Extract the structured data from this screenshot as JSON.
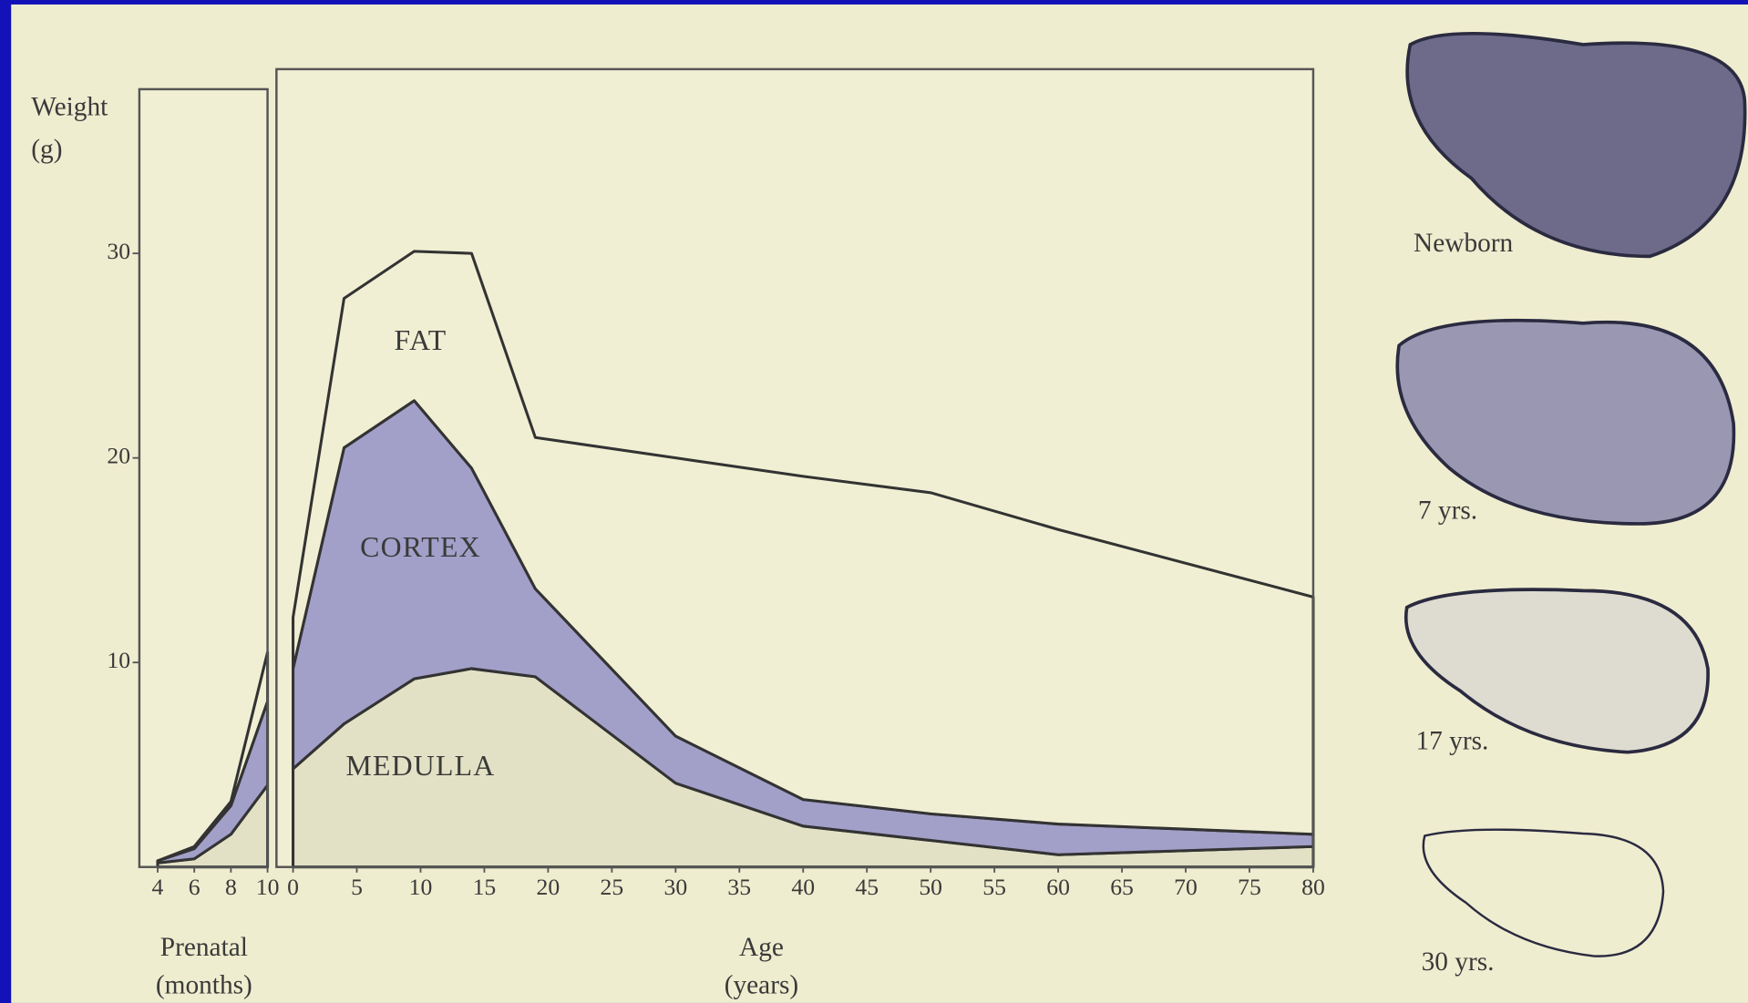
{
  "chart_data": [
    {
      "type": "area",
      "stacked": true,
      "y_label": [
        "Weight",
        "(g)"
      ],
      "x_label": [
        "Prenatal",
        "(months)"
      ],
      "x": [
        4,
        6,
        8,
        10
      ],
      "xlim": [
        3,
        10
      ],
      "xticks": [
        4,
        6,
        8,
        10
      ],
      "ylim": [
        0,
        38
      ],
      "yticks": [
        10,
        20,
        30
      ],
      "series": [
        {
          "color": "#e3e1c5",
          "values": [
            0.2,
            0.4,
            1.6,
            4.0
          ]
        },
        {
          "color": "#a29fc9",
          "values": [
            0.1,
            0.5,
            1.4,
            4.1
          ]
        },
        {
          "color": "#f1efd3",
          "values": [
            0,
            0.1,
            0.2,
            2.4
          ]
        }
      ]
    },
    {
      "type": "area",
      "stacked": true,
      "x_label": [
        "Age",
        "(years)"
      ],
      "x": [
        0,
        4,
        9.5,
        14,
        19,
        30,
        40,
        50,
        60,
        80
      ],
      "xlim": [
        -1.3,
        80
      ],
      "xticks": [
        0,
        5,
        10,
        15,
        20,
        25,
        30,
        35,
        40,
        45,
        50,
        55,
        60,
        65,
        70,
        75,
        80
      ],
      "ylim": [
        0,
        38
      ],
      "series": [
        {
          "name": "MEDULLA",
          "color": "#e3e1c5",
          "values": [
            4.8,
            7.0,
            9.2,
            9.7,
            9.3,
            4.1,
            2.0,
            1.3,
            0.6,
            1.0
          ]
        },
        {
          "name": "CORTEX",
          "color": "#a29fc9",
          "values": [
            4.9,
            13.5,
            13.6,
            9.8,
            4.3,
            2.3,
            1.3,
            1.3,
            1.5,
            0.6
          ]
        },
        {
          "name": "FAT",
          "color": "#f1efd3",
          "values": [
            2.5,
            7.3,
            7.3,
            10.5,
            7.4,
            13.6,
            15.8,
            15.7,
            14.4,
            11.6
          ]
        }
      ]
    }
  ],
  "sections": [
    {
      "caption": "Newborn"
    },
    {
      "caption": "7 yrs."
    },
    {
      "caption": "17 yrs."
    },
    {
      "caption": "30 yrs."
    }
  ]
}
